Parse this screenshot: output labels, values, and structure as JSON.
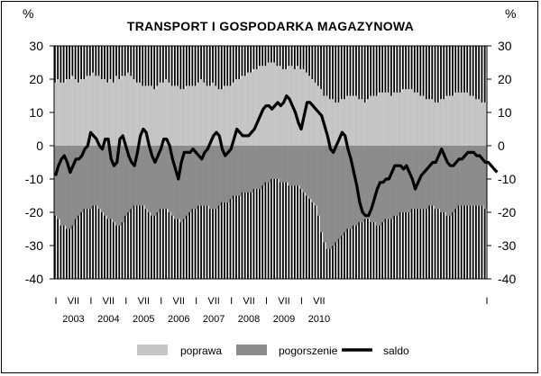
{
  "chart_data": {
    "type": "area",
    "title": "TRANSPORT  I  GOSPODARKA  MAGAZYNOWA",
    "ylabel_left": "%",
    "ylabel_right": "%",
    "ylim": [
      -40,
      30
    ],
    "yticks": [
      30,
      20,
      10,
      0,
      -10,
      -20,
      -30,
      -40
    ],
    "years": [
      "2003",
      "2004",
      "2005",
      "2006",
      "2007",
      "2008",
      "2009",
      "2010"
    ],
    "month_tick_labels": [
      "I",
      "VII"
    ],
    "x_start": "2003-01",
    "x_end": "2010-12",
    "series": [
      {
        "name": "poprawa",
        "type": "area",
        "color": "#c6c6c6",
        "values": [
          19,
          20,
          19,
          19,
          20,
          20,
          21,
          20,
          19,
          20,
          20,
          21,
          21,
          22,
          21,
          21,
          20,
          20,
          19,
          20,
          19,
          21,
          20,
          21,
          21,
          22,
          21,
          20,
          19,
          19,
          18,
          18,
          18,
          18,
          17,
          18,
          19,
          19,
          20,
          19,
          18,
          18,
          18,
          17,
          17,
          18,
          18,
          18,
          18,
          19,
          20,
          19,
          18,
          18,
          19,
          18,
          17,
          17,
          18,
          18,
          18,
          19,
          20,
          20,
          21,
          21,
          22,
          22,
          23,
          23,
          24,
          24,
          24,
          25,
          25,
          25,
          24,
          24,
          23,
          23,
          24,
          24,
          23,
          24,
          23,
          23,
          22,
          21,
          20,
          19,
          18,
          17,
          15,
          15,
          14,
          14,
          13,
          13,
          14,
          14,
          15,
          15,
          15,
          15,
          14,
          14,
          13,
          14,
          15,
          15,
          15,
          16,
          16,
          16,
          16,
          15,
          16,
          16,
          16,
          17,
          17,
          17,
          17,
          16,
          16,
          15,
          15,
          14,
          14,
          14,
          13,
          13,
          14,
          14,
          15,
          15,
          15,
          16,
          16,
          16,
          16,
          16,
          15,
          15,
          14,
          14,
          13,
          13
        ]
      },
      {
        "name": "pogorszenie",
        "type": "area",
        "color": "#8c8c8c",
        "values": [
          -21,
          -22,
          -24,
          -24,
          -25,
          -25,
          -24,
          -22,
          -21,
          -20,
          -19,
          -19,
          -19,
          -18,
          -18,
          -19,
          -20,
          -21,
          -22,
          -22,
          -23,
          -24,
          -24,
          -23,
          -21,
          -20,
          -19,
          -18,
          -18,
          -18,
          -18,
          -19,
          -20,
          -21,
          -21,
          -20,
          -19,
          -19,
          -19,
          -20,
          -21,
          -22,
          -22,
          -23,
          -22,
          -21,
          -20,
          -19,
          -19,
          -18,
          -18,
          -18,
          -18,
          -19,
          -19,
          -19,
          -18,
          -17,
          -17,
          -17,
          -16,
          -15,
          -15,
          -15,
          -14,
          -14,
          -14,
          -14,
          -13,
          -13,
          -13,
          -12,
          -11,
          -11,
          -10,
          -10,
          -10,
          -11,
          -11,
          -11,
          -12,
          -12,
          -12,
          -12,
          -13,
          -14,
          -15,
          -16,
          -17,
          -18,
          -21,
          -26,
          -29,
          -31,
          -31,
          -30,
          -29,
          -28,
          -27,
          -26,
          -25,
          -25,
          -24,
          -24,
          -23,
          -23,
          -22,
          -22,
          -23,
          -23,
          -24,
          -24,
          -23,
          -22,
          -22,
          -22,
          -21,
          -21,
          -20,
          -20,
          -20,
          -20,
          -19,
          -19,
          -19,
          -19,
          -19,
          -19,
          -18,
          -18,
          -19,
          -19,
          -20,
          -20,
          -21,
          -21,
          -20,
          -19,
          -18,
          -18,
          -18,
          -18,
          -18,
          -18,
          -18,
          -18,
          -18,
          -19
        ]
      },
      {
        "name": "saldo",
        "type": "line",
        "color": "#000000",
        "values": [
          -9,
          -6,
          -4,
          -3,
          -5,
          -8,
          -6,
          -4,
          -4,
          -3,
          -1,
          0,
          4,
          3,
          2,
          0,
          -1,
          2,
          2,
          -4,
          -6,
          -5,
          2,
          3,
          0,
          -3,
          -5,
          -6,
          -2,
          3,
          5,
          4,
          0,
          -3,
          -5,
          -3,
          -1,
          2,
          2,
          0,
          -4,
          -7,
          -10,
          -5,
          -2,
          -2,
          -2,
          -1,
          -2,
          -3,
          -4,
          -2,
          -1,
          1,
          3,
          4,
          3,
          -1,
          -3,
          -2,
          -1,
          2,
          5,
          4,
          3,
          3,
          3,
          4,
          5,
          7,
          9,
          11,
          12,
          12,
          11,
          12,
          13,
          12,
          13,
          15,
          14,
          12,
          10,
          7,
          5,
          9,
          13,
          13,
          12,
          11,
          10,
          9,
          6,
          3,
          -1,
          -2,
          0,
          2,
          4,
          3,
          -1,
          -4,
          -8,
          -12,
          -17,
          -20,
          -21,
          -21,
          -19,
          -16,
          -13,
          -11,
          -11,
          -10,
          -10,
          -8,
          -6,
          -6,
          -6,
          -7,
          -6,
          -8,
          -10,
          -13,
          -11,
          -9,
          -8,
          -7,
          -6,
          -5,
          -5,
          -3,
          -1,
          -3,
          -5,
          -6,
          -6,
          -5,
          -4,
          -4,
          -3,
          -2,
          -2,
          -2,
          -3,
          -3,
          -4,
          -5,
          -5,
          -6,
          -7,
          -8
        ]
      }
    ],
    "legend_position": "bottom",
    "grid": false
  }
}
